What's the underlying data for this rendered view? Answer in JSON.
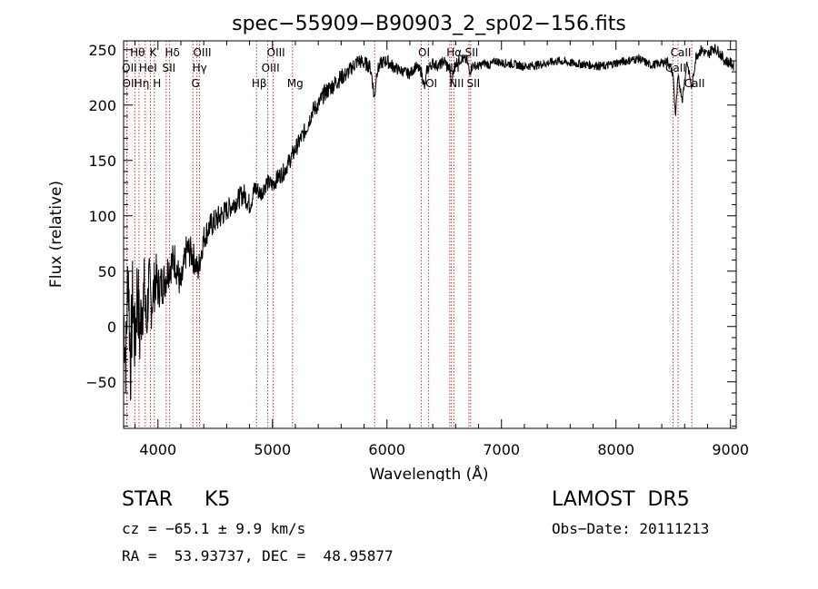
{
  "chart_data": {
    "type": "line",
    "title": "spec−55909−B90903_2_sp02−156.fits",
    "xlabel": "Wavelength (Å)",
    "ylabel": "Flux (relative)",
    "xlim": [
      3700,
      9050
    ],
    "ylim": [
      -92,
      258
    ],
    "xticks": [
      4000,
      5000,
      6000,
      7000,
      8000,
      9000
    ],
    "yticks": [
      -50,
      0,
      50,
      100,
      150,
      200,
      250
    ],
    "series": [
      {
        "x": [
          3700,
          3720,
          3740,
          3760,
          3780,
          3800,
          3820,
          3840,
          3860,
          3880,
          3900,
          3920,
          3940,
          3960,
          3980,
          4000,
          4050,
          4100,
          4150,
          4200,
          4250,
          4300,
          4350,
          4400,
          4450,
          4500,
          4550,
          4600,
          4650,
          4700,
          4750,
          4800,
          4850,
          4900,
          4950,
          5000,
          5050,
          5100,
          5150,
          5200,
          5250,
          5300,
          5350,
          5400,
          5450,
          5500,
          5550,
          5600,
          5650,
          5700,
          5750,
          5800,
          5850,
          5870,
          5890,
          5910,
          5950,
          6000,
          6050,
          6100,
          6150,
          6200,
          6250,
          6300,
          6330,
          6350,
          6400,
          6450,
          6500,
          6550,
          6563,
          6580,
          6600,
          6650,
          6700,
          6720,
          6750,
          6800,
          6850,
          6900,
          6950,
          7000,
          7100,
          7200,
          7300,
          7400,
          7500,
          7600,
          7700,
          7800,
          7900,
          8000,
          8100,
          8200,
          8300,
          8400,
          8450,
          8498,
          8520,
          8542,
          8580,
          8620,
          8662,
          8700,
          8750,
          8800,
          8850,
          8900,
          8950,
          9000,
          9030
        ],
        "y": [
          10,
          -30,
          60,
          -40,
          30,
          -20,
          40,
          -10,
          20,
          30,
          0,
          40,
          20,
          30,
          45,
          35,
          40,
          55,
          60,
          35,
          70,
          65,
          50,
          80,
          90,
          95,
          100,
          105,
          110,
          115,
          120,
          110,
          125,
          120,
          130,
          128,
          135,
          140,
          150,
          160,
          170,
          180,
          195,
          200,
          210,
          215,
          220,
          225,
          228,
          235,
          240,
          238,
          235,
          225,
          205,
          230,
          238,
          240,
          235,
          232,
          230,
          228,
          235,
          230,
          215,
          232,
          238,
          235,
          240,
          232,
          218,
          232,
          238,
          242,
          240,
          230,
          236,
          235,
          238,
          236,
          240,
          238,
          237,
          235,
          236,
          238,
          240,
          238,
          237,
          236,
          235,
          238,
          240,
          242,
          236,
          238,
          240,
          228,
          190,
          225,
          205,
          240,
          215,
          245,
          250,
          245,
          252,
          248,
          240,
          238,
          235
        ],
        "noise": [
          40,
          40,
          40,
          40,
          40,
          40,
          40,
          40,
          35,
          35,
          30,
          30,
          25,
          25,
          25,
          20,
          20,
          18,
          18,
          15,
          15,
          15,
          12,
          12,
          12,
          12,
          12,
          10,
          10,
          10,
          10,
          10,
          10,
          8,
          8,
          8,
          8,
          8,
          8,
          8,
          8,
          8,
          8,
          8,
          8,
          8,
          8,
          8,
          7,
          7,
          7,
          7,
          6,
          6,
          6,
          6,
          6,
          6,
          6,
          5,
          5,
          5,
          5,
          5,
          5,
          5,
          5,
          5,
          5,
          5,
          5,
          5,
          5,
          5,
          5,
          5,
          4,
          4,
          4,
          4,
          4,
          4,
          4,
          4,
          4,
          4,
          4,
          4,
          4,
          4,
          4,
          4,
          4,
          4,
          4,
          4,
          4,
          4,
          4,
          4,
          4,
          4,
          4,
          5,
          5,
          5,
          5,
          5,
          5,
          5,
          5
        ]
      }
    ],
    "lines": [
      {
        "label": "Hθ",
        "x": 3798,
        "row": 0
      },
      {
        "label": "K",
        "x": 3934,
        "row": 0
      },
      {
        "label": "Hδ",
        "x": 4102,
        "row": 0
      },
      {
        "label": "OII",
        "x": 3727,
        "row": 1
      },
      {
        "label": "HeI",
        "x": 3889,
        "row": 1
      },
      {
        "label": "SII",
        "x": 4072,
        "row": 1
      },
      {
        "label": "OII",
        "x": 3730,
        "row": 2
      },
      {
        "label": "Hη",
        "x": 3835,
        "row": 2
      },
      {
        "label": "H",
        "x": 3968,
        "row": 2
      },
      {
        "label": "OIII",
        "x": 4363,
        "row": 0
      },
      {
        "label": "Hγ",
        "x": 4340,
        "row": 1
      },
      {
        "label": "G",
        "x": 4305,
        "row": 2
      },
      {
        "label": "Hβ",
        "x": 4861,
        "row": 2
      },
      {
        "label": "OIII",
        "x": 5007,
        "row": 0
      },
      {
        "label": "OIII",
        "x": 4959,
        "row": 1
      },
      {
        "label": "Mg",
        "x": 5175,
        "row": 2
      },
      {
        "label": "OI",
        "x": 6300,
        "row": 0
      },
      {
        "label": "OI",
        "x": 6364,
        "row": 2
      },
      {
        "label": "Hα",
        "x": 6563,
        "row": 0
      },
      {
        "label": "SII",
        "x": 6716,
        "row": 0
      },
      {
        "label": "NII",
        "x": 6548,
        "row": 1
      },
      {
        "label": "NII",
        "x": 6584,
        "row": 2
      },
      {
        "label": "SII",
        "x": 6731,
        "row": 2
      },
      {
        "label": "CaII",
        "x": 8542,
        "row": 0
      },
      {
        "label": "CaII",
        "x": 8498,
        "row": 1
      },
      {
        "label": "CaII",
        "x": 8662,
        "row": 2
      }
    ],
    "extra_lines": [
      5893
    ]
  },
  "info": {
    "class": "STAR     K5",
    "survey": "LAMOST  DR5",
    "cz": "cz = −65.1 ± 9.9 km/s",
    "obs_date": "Obs−Date: 20111213",
    "radec": "RA =  53.93737, DEC =  48.95877"
  }
}
